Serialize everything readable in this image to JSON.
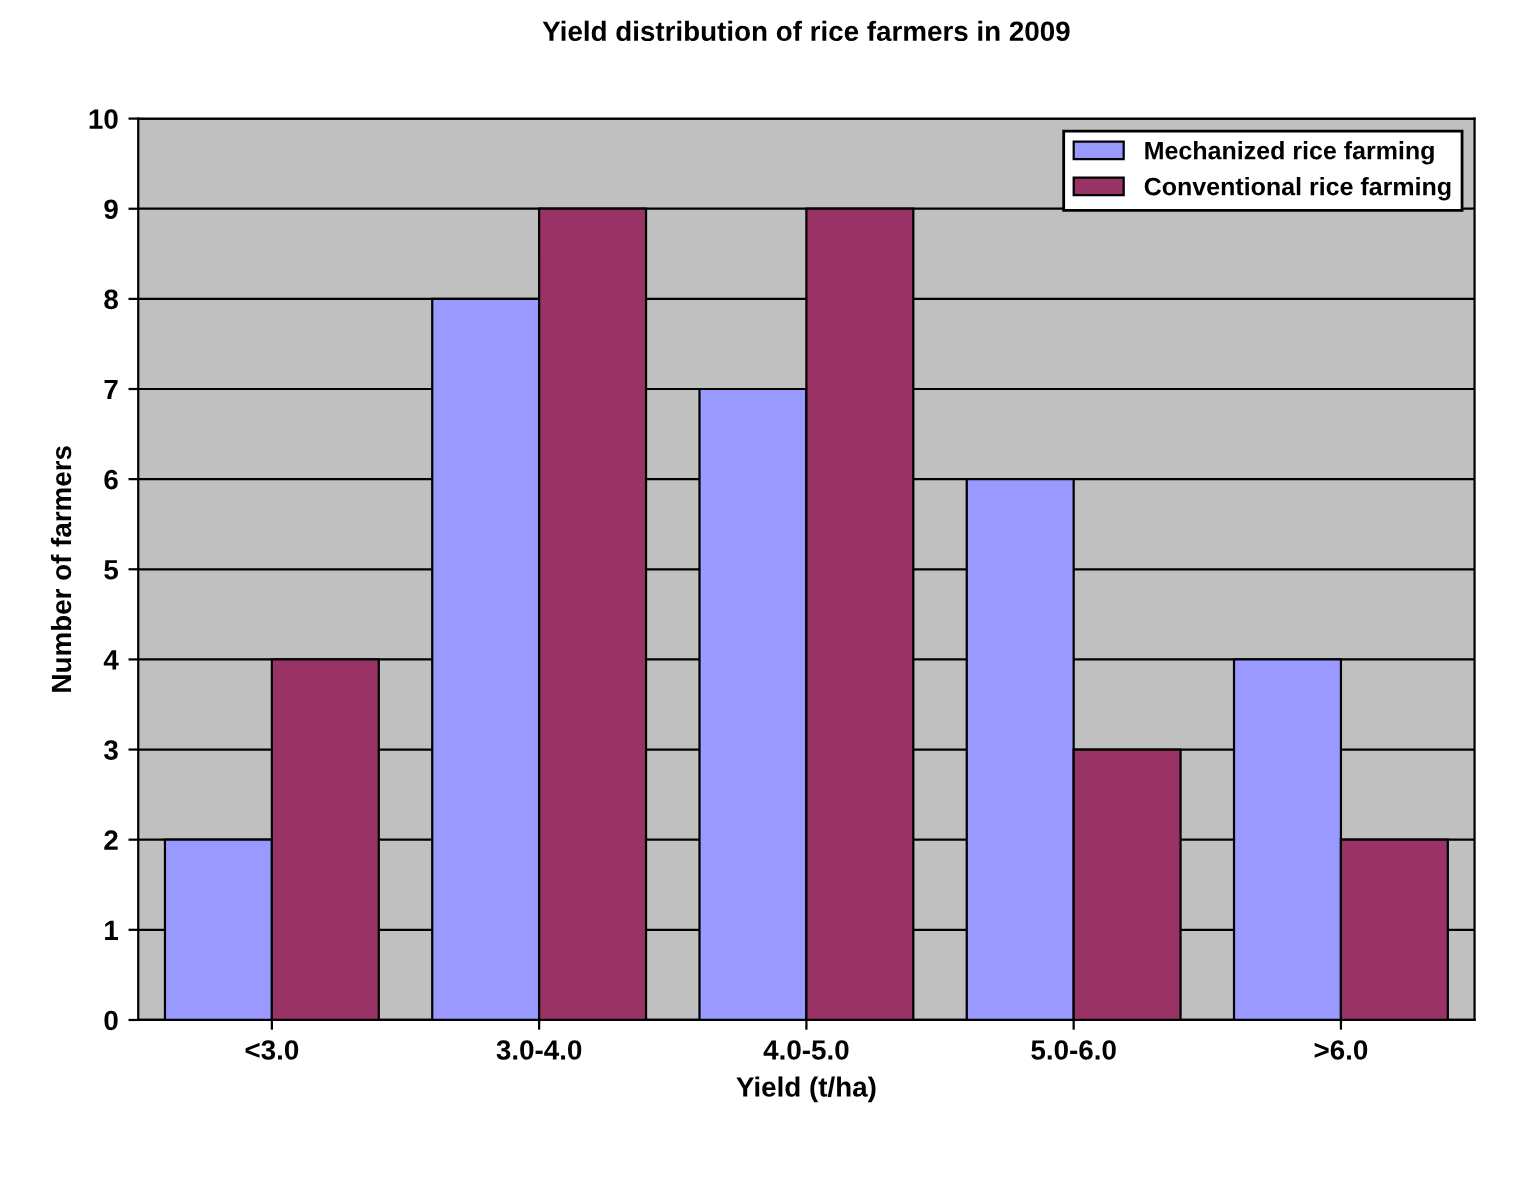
{
  "chart_data": {
    "type": "bar",
    "title": "Yield distribution of rice farmers in 2009",
    "xlabel": "Yield (t/ha)",
    "ylabel": "Number of farmers",
    "categories": [
      "<3.0",
      "3.0-4.0",
      "4.0-5.0",
      "5.0-6.0",
      ">6.0"
    ],
    "series": [
      {
        "name": "Mechanized rice farming",
        "color": "#9999ff",
        "values": [
          2,
          8,
          7,
          6,
          4
        ]
      },
      {
        "name": "Conventional rice farming",
        "color": "#993366",
        "values": [
          4,
          9,
          9,
          3,
          2
        ]
      }
    ],
    "ylim": [
      0,
      10
    ],
    "yticks": [
      0,
      1,
      2,
      3,
      4,
      5,
      6,
      7,
      8,
      9,
      10
    ],
    "grid": "y",
    "legend": "top right"
  }
}
